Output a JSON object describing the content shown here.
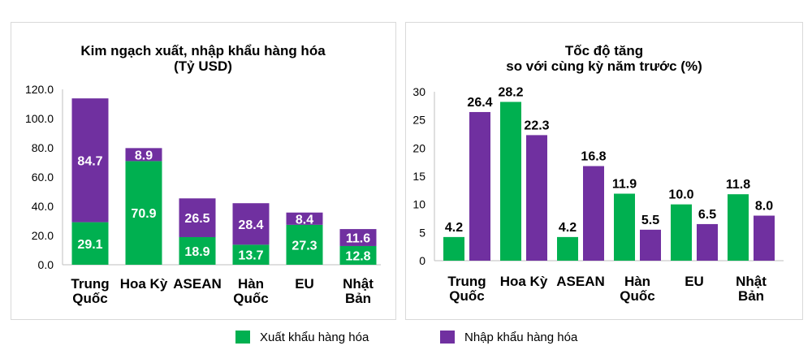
{
  "colors": {
    "export": "#00b050",
    "import": "#7030a0",
    "label_on_bar": "#ffffff",
    "axis": "#bfbfbf"
  },
  "legend": {
    "export": "Xuất khẩu hàng hóa",
    "import": "Nhập khẩu hàng hóa"
  },
  "chart_data": [
    {
      "type": "bar",
      "stacked": true,
      "title_lines": [
        "Kim ngạch xuất, nhập khẩu hàng hóa",
        "(Tỷ USD)"
      ],
      "categories": [
        [
          "Trung",
          "Quốc"
        ],
        [
          "Hoa Kỳ"
        ],
        [
          "ASEAN"
        ],
        [
          "Hàn",
          "Quốc"
        ],
        [
          "EU"
        ],
        [
          "Nhật",
          "Bản"
        ]
      ],
      "series": [
        {
          "name": "Xuất khẩu hàng hóa",
          "values": [
            29.1,
            70.9,
            18.9,
            13.7,
            27.3,
            12.8
          ]
        },
        {
          "name": "Nhập khẩu hàng hóa",
          "values": [
            84.7,
            8.9,
            26.5,
            28.4,
            8.4,
            11.6
          ]
        }
      ],
      "yticks": [
        "0.0",
        "20.0",
        "40.0",
        "60.0",
        "80.0",
        "100.0",
        "120.0"
      ],
      "ylim": [
        0,
        120
      ],
      "grid": false,
      "legend": "bottom"
    },
    {
      "type": "bar",
      "stacked": false,
      "title_lines": [
        "Tốc độ tăng",
        "so với cùng kỳ năm trước (%)"
      ],
      "categories": [
        [
          "Trung",
          "Quốc"
        ],
        [
          "Hoa Kỳ"
        ],
        [
          "ASEAN"
        ],
        [
          "Hàn",
          "Quốc"
        ],
        [
          "EU"
        ],
        [
          "Nhật",
          "Bản"
        ]
      ],
      "series": [
        {
          "name": "Xuất khẩu hàng hóa",
          "values": [
            4.2,
            28.2,
            4.2,
            11.9,
            10.0,
            11.8
          ]
        },
        {
          "name": "Nhập khẩu hàng hóa",
          "values": [
            26.4,
            22.3,
            16.8,
            5.5,
            6.5,
            8.0
          ]
        }
      ],
      "yticks": [
        "0",
        "5",
        "10",
        "15",
        "20",
        "25",
        "30"
      ],
      "ylim": [
        0,
        30
      ],
      "grid": false,
      "legend": "bottom"
    }
  ]
}
